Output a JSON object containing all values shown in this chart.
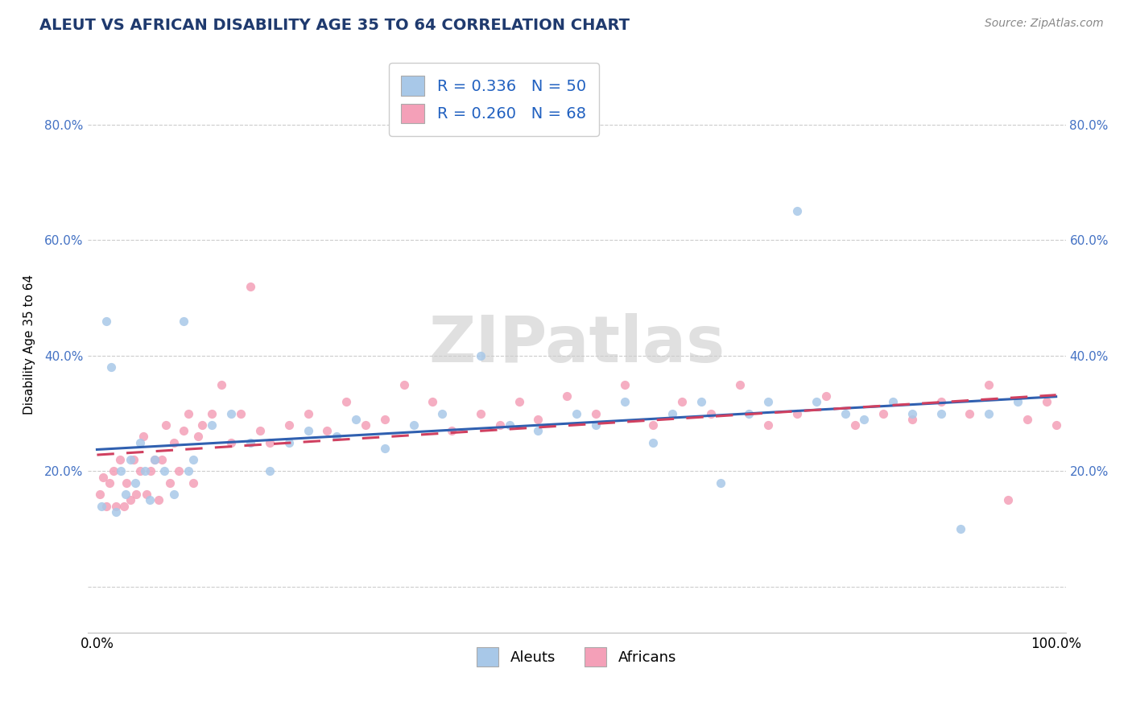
{
  "title": "ALEUT VS AFRICAN DISABILITY AGE 35 TO 64 CORRELATION CHART",
  "source": "Source: ZipAtlas.com",
  "ylabel": "Disability Age 35 to 64",
  "xlim": [
    -1,
    101
  ],
  "ylim": [
    -8,
    92
  ],
  "yticks": [
    0,
    20,
    40,
    60,
    80
  ],
  "ytick_labels": [
    "",
    "20.0%",
    "40.0%",
    "60.0%",
    "80.0%"
  ],
  "ytick_labels_right": [
    "",
    "20.0%",
    "40.0%",
    "60.0%",
    "80.0%"
  ],
  "xtick_left": "0.0%",
  "xtick_right": "100.0%",
  "aleut_color": "#a8c8e8",
  "african_color": "#f4a0b8",
  "aleut_line_color": "#3060b0",
  "african_line_color": "#d04060",
  "watermark_text": "ZIPatlas",
  "aleuts_x": [
    0.5,
    1.0,
    1.5,
    2.0,
    2.5,
    3.0,
    3.5,
    4.0,
    4.5,
    5.0,
    5.5,
    6.0,
    7.0,
    8.0,
    9.0,
    9.5,
    10.0,
    12.0,
    14.0,
    16.0,
    18.0,
    20.0,
    22.0,
    25.0,
    27.0,
    30.0,
    33.0,
    36.0,
    40.0,
    43.0,
    46.0,
    50.0,
    52.0,
    55.0,
    58.0,
    60.0,
    63.0,
    65.0,
    68.0,
    70.0,
    73.0,
    75.0,
    78.0,
    80.0,
    83.0,
    85.0,
    88.0,
    90.0,
    93.0,
    96.0
  ],
  "aleuts_y": [
    14.0,
    46.0,
    38.0,
    13.0,
    20.0,
    16.0,
    22.0,
    18.0,
    25.0,
    20.0,
    15.0,
    22.0,
    20.0,
    16.0,
    46.0,
    20.0,
    22.0,
    28.0,
    30.0,
    25.0,
    20.0,
    25.0,
    27.0,
    26.0,
    29.0,
    24.0,
    28.0,
    30.0,
    40.0,
    28.0,
    27.0,
    30.0,
    28.0,
    32.0,
    25.0,
    30.0,
    32.0,
    18.0,
    30.0,
    32.0,
    65.0,
    32.0,
    30.0,
    29.0,
    32.0,
    30.0,
    30.0,
    10.0,
    30.0,
    32.0
  ],
  "africans_x": [
    0.3,
    0.6,
    1.0,
    1.3,
    1.7,
    2.0,
    2.4,
    2.8,
    3.1,
    3.5,
    3.8,
    4.1,
    4.5,
    4.8,
    5.2,
    5.6,
    6.0,
    6.4,
    6.8,
    7.2,
    7.6,
    8.0,
    8.5,
    9.0,
    9.5,
    10.0,
    10.5,
    11.0,
    12.0,
    13.0,
    14.0,
    15.0,
    16.0,
    17.0,
    18.0,
    20.0,
    22.0,
    24.0,
    26.0,
    28.0,
    30.0,
    32.0,
    35.0,
    37.0,
    40.0,
    42.0,
    44.0,
    46.0,
    49.0,
    52.0,
    55.0,
    58.0,
    61.0,
    64.0,
    67.0,
    70.0,
    73.0,
    76.0,
    79.0,
    82.0,
    85.0,
    88.0,
    91.0,
    93.0,
    95.0,
    97.0,
    99.0,
    100.0
  ],
  "africans_y": [
    16.0,
    19.0,
    14.0,
    18.0,
    20.0,
    14.0,
    22.0,
    14.0,
    18.0,
    15.0,
    22.0,
    16.0,
    20.0,
    26.0,
    16.0,
    20.0,
    22.0,
    15.0,
    22.0,
    28.0,
    18.0,
    25.0,
    20.0,
    27.0,
    30.0,
    18.0,
    26.0,
    28.0,
    30.0,
    35.0,
    25.0,
    30.0,
    52.0,
    27.0,
    25.0,
    28.0,
    30.0,
    27.0,
    32.0,
    28.0,
    29.0,
    35.0,
    32.0,
    27.0,
    30.0,
    28.0,
    32.0,
    29.0,
    33.0,
    30.0,
    35.0,
    28.0,
    32.0,
    30.0,
    35.0,
    28.0,
    30.0,
    33.0,
    28.0,
    30.0,
    29.0,
    32.0,
    30.0,
    35.0,
    15.0,
    29.0,
    32.0,
    28.0
  ]
}
